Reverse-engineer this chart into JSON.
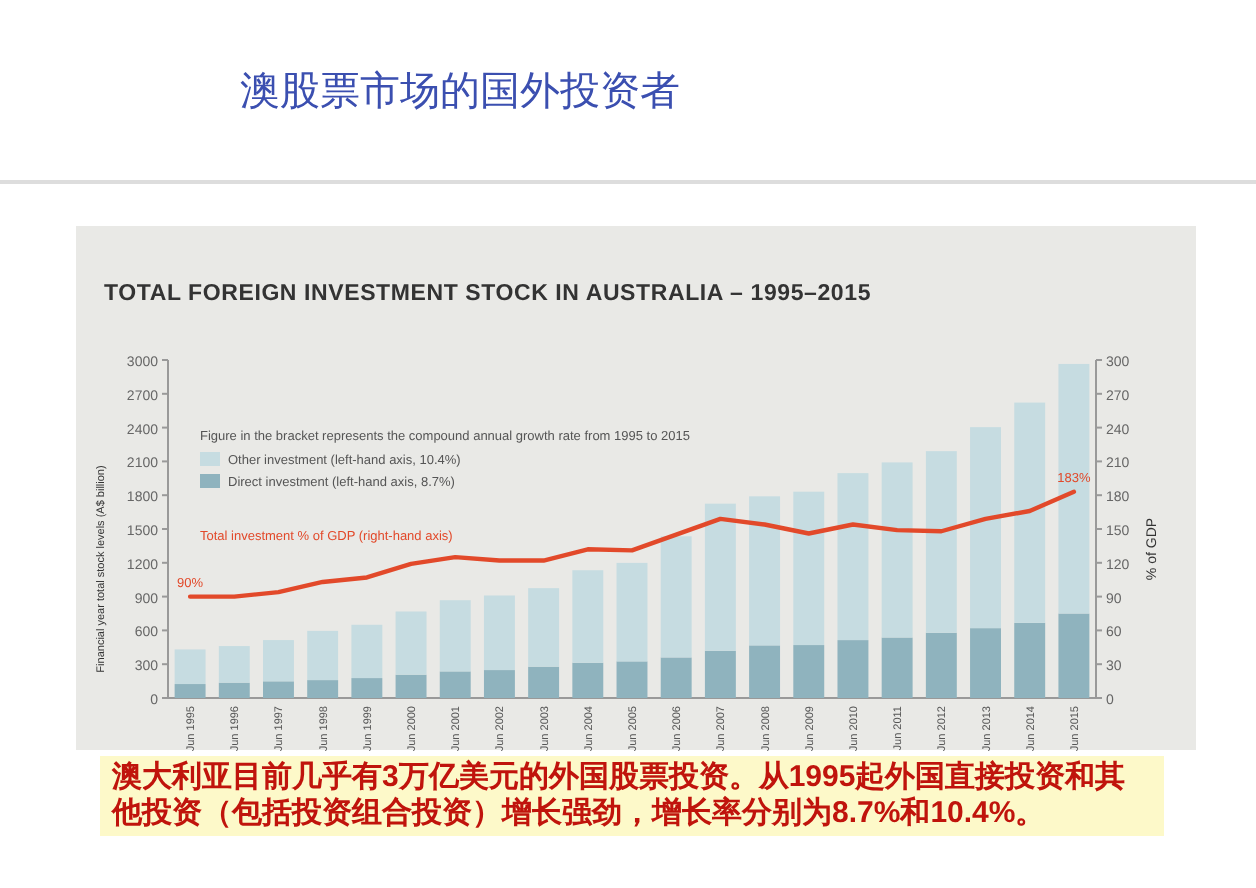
{
  "chart_data": {
    "type": "bar",
    "stacked": true,
    "title": "澳股票市场的国外投资者",
    "subtitle": "TOTAL FOREIGN INVESTMENT STOCK IN AUSTRALIA – 1995–2015",
    "ylabel": "Financial year total stock levels (A$ billion)",
    "y2label": "% of GDP",
    "categories": [
      "Jun 1995",
      "Jun 1996",
      "Jun 1997",
      "Jun 1998",
      "Jun 1999",
      "Jun 2000",
      "Jun 2001",
      "Jun 2002",
      "Jun 2003",
      "Jun 2004",
      "Jun 2005",
      "Jun 2006",
      "Jun 2007",
      "Jun 2008",
      "Jun 2009",
      "Jun 2010",
      "Jun 2011",
      "Jun 2012",
      "Jun 2013",
      "Jun 2014",
      "Jun 2015"
    ],
    "series": [
      {
        "name": "Direct investment (left-hand axis, 8.7%)",
        "color": "#8fb3be",
        "values": [
          124,
          136,
          148,
          159,
          177,
          207,
          236,
          248,
          278,
          313,
          325,
          360,
          419,
          467,
          470,
          514,
          537,
          579,
          620,
          667,
          750
        ]
      },
      {
        "name": "Other investment (left-hand axis, 10.4%)",
        "color": "#c6dce1",
        "values": [
          307,
          325,
          366,
          437,
          473,
          561,
          632,
          662,
          697,
          821,
          874,
          1075,
          1306,
          1323,
          1361,
          1482,
          1554,
          1612,
          1784,
          1955,
          2215
        ]
      },
      {
        "name": "Total investment % of GDP (right-hand axis)",
        "type": "line",
        "axis": "y2",
        "color": "#e2492a",
        "values": [
          90,
          90,
          94,
          103,
          107,
          119,
          125,
          122,
          122,
          132,
          131,
          145,
          159,
          154,
          146,
          154,
          149,
          148,
          159,
          166,
          183
        ]
      }
    ],
    "ylim": [
      0,
      3000
    ],
    "yticks": [
      0,
      300,
      600,
      900,
      1200,
      1500,
      1800,
      2100,
      2400,
      2700,
      3000
    ],
    "y2lim": [
      0,
      300
    ],
    "y2ticks": [
      0,
      30,
      60,
      90,
      120,
      150,
      180,
      210,
      240,
      270,
      300
    ],
    "legend": "top left",
    "grid": false,
    "annotations": [
      "澳大利亚目前几乎有3万亿美元的外国股票投资。从1995起外国直接投资和其他投资（包括投资组合投资）增长强劲，增长率分别为8.7%和10.4%。",
      "Figure in the bracket represents the compound annual growth rate from 1995 to 2015",
      "90%",
      "183%"
    ]
  }
}
